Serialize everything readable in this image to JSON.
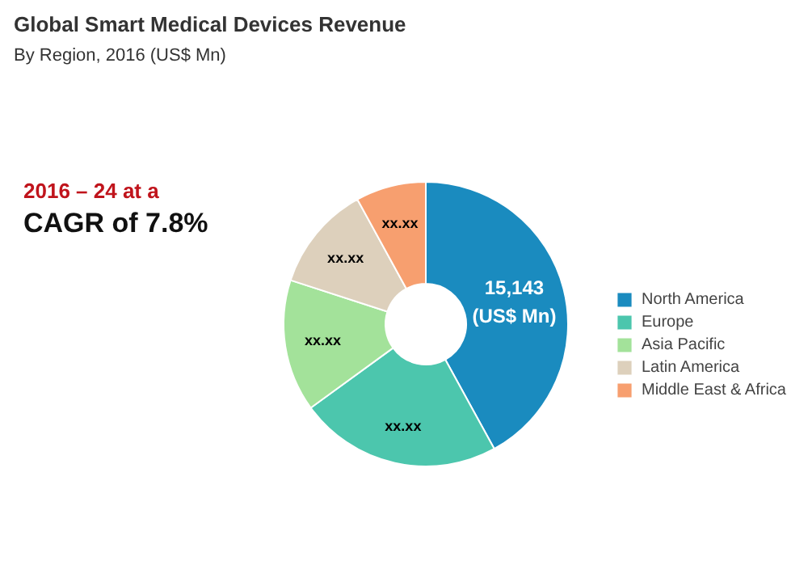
{
  "chart_data": {
    "type": "donut",
    "title": "Global Smart Medical Devices Revenue",
    "subtitle": "By Region, 2016 (US$ Mn)",
    "categories": [
      "North America",
      "Europe",
      "Asia Pacific",
      "Latin America",
      "Middle East & Africa"
    ],
    "values": [
      15143,
      8290,
      5410,
      4330,
      2880
    ],
    "colors": [
      "#1a8bbf",
      "#4cc6ad",
      "#a3e29a",
      "#ddd0bc",
      "#f79f6f"
    ],
    "value_labels": [
      "15,143 (US$ Mn)",
      "xx.xx",
      "xx.xx",
      "xx.xx",
      "xx.xx"
    ],
    "annotations": [
      "2016 – 24 at a",
      "CAGR of 7.8%"
    ],
    "legend": "right"
  }
}
